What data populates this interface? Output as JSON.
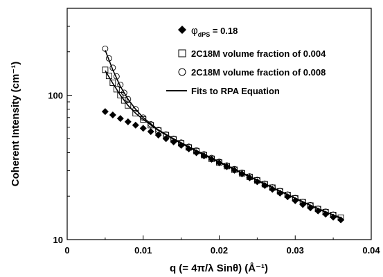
{
  "chart_data": {
    "type": "scatter",
    "xlabel": "q (= 4π/λ Sinθ) (Å⁻¹)",
    "ylabel": "Coherent Intensity (cm⁻¹)",
    "x_ticks": [
      "0",
      "0.01",
      "0.02",
      "0.03",
      "0.04"
    ],
    "y_ticks": [
      "10",
      "100"
    ],
    "xlim": [
      0,
      0.04
    ],
    "ylim": [
      10,
      400
    ],
    "y_scale": "log",
    "grid": false,
    "legend_position": "top-right",
    "legend": {
      "phi_symbol": "φ",
      "phi_subscript": "dPS",
      "phi_value": " = 0.18"
    },
    "series": [
      {
        "name": "φdPS = 0.18",
        "marker": "diamond-filled",
        "x": [
          0.005,
          0.006,
          0.007,
          0.008,
          0.009,
          0.01,
          0.011,
          0.012,
          0.013,
          0.014,
          0.015,
          0.016,
          0.017,
          0.018,
          0.019,
          0.02,
          0.021,
          0.022,
          0.023,
          0.024,
          0.025,
          0.026,
          0.027,
          0.028,
          0.029,
          0.03,
          0.031,
          0.032,
          0.033,
          0.034,
          0.035,
          0.036
        ],
        "y": [
          77,
          73,
          69,
          65.5,
          62,
          59,
          56,
          53,
          50,
          47.5,
          45,
          42.5,
          40,
          38,
          36,
          34,
          32,
          30.2,
          28.5,
          26.8,
          25.2,
          23.7,
          22.3,
          21.0,
          19.8,
          18.6,
          17.5,
          16.6,
          15.8,
          15.0,
          14.3,
          13.7
        ]
      },
      {
        "name": "2C18M volume fraction of 0.004",
        "marker": "square-open",
        "x": [
          0.005,
          0.0055,
          0.006,
          0.0065,
          0.007,
          0.0075,
          0.008,
          0.009,
          0.01,
          0.011,
          0.012,
          0.013,
          0.014,
          0.015,
          0.016,
          0.017,
          0.018,
          0.019,
          0.02,
          0.021,
          0.022,
          0.023,
          0.024,
          0.025,
          0.026,
          0.027,
          0.028,
          0.029,
          0.03,
          0.031,
          0.032,
          0.033,
          0.034,
          0.035,
          0.036
        ],
        "y": [
          150,
          136,
          122,
          110,
          100,
          92,
          85,
          75,
          68,
          62,
          57,
          53,
          49.5,
          46.5,
          43.5,
          41,
          38.5,
          36.3,
          34.2,
          32.3,
          30.5,
          28.8,
          27.2,
          25.7,
          24.2,
          22.9,
          21.6,
          20.4,
          19.3,
          18.2,
          17.2,
          16.3,
          15.5,
          14.8,
          14.2
        ]
      },
      {
        "name": "2C18M volume fraction of 0.008",
        "marker": "circle-open",
        "x": [
          0.005,
          0.0055,
          0.006,
          0.0065,
          0.007,
          0.0075,
          0.008,
          0.009,
          0.01,
          0.011,
          0.012,
          0.013,
          0.014,
          0.015,
          0.016,
          0.017,
          0.018,
          0.019,
          0.02,
          0.021,
          0.022,
          0.023,
          0.024,
          0.025,
          0.026,
          0.027,
          0.028,
          0.029,
          0.03,
          0.031,
          0.032,
          0.033,
          0.034,
          0.035
        ],
        "y": [
          210,
          180,
          155,
          135,
          118,
          104,
          94,
          80,
          70,
          63,
          57.5,
          53.5,
          50,
          47,
          44,
          41.5,
          39,
          36.8,
          34.6,
          32.6,
          30.8,
          29.1,
          27.4,
          25.9,
          24.4,
          23.0,
          21.7,
          20.5,
          19.4,
          18.3,
          17.3,
          16.4,
          15.6,
          14.9
        ]
      },
      {
        "name": "Fits to RPA Equation",
        "marker": "line",
        "x": [
          0.005,
          0.006,
          0.007,
          0.008,
          0.009,
          0.01,
          0.012,
          0.014,
          0.016,
          0.018,
          0.02,
          0.022,
          0.024,
          0.026,
          0.028,
          0.03,
          0.032,
          0.034,
          0.036
        ],
        "y": [
          205,
          150,
          115,
          94,
          80,
          70,
          57.5,
          50,
          44,
          39,
          34.6,
          30.8,
          27.4,
          24.4,
          21.7,
          19.4,
          17.3,
          15.6,
          14.0
        ]
      },
      {
        "marker": "line",
        "x": [
          0.005,
          0.006,
          0.007,
          0.008,
          0.009,
          0.01,
          0.012,
          0.014,
          0.016,
          0.018,
          0.02,
          0.022,
          0.024,
          0.026,
          0.028,
          0.03,
          0.032,
          0.034,
          0.036
        ],
        "y": [
          148,
          121,
          100,
          85,
          75,
          68,
          57,
          49.5,
          43.5,
          38.5,
          34.2,
          30.5,
          27.2,
          24.2,
          21.6,
          19.3,
          17.2,
          15.5,
          14.2
        ]
      }
    ]
  }
}
